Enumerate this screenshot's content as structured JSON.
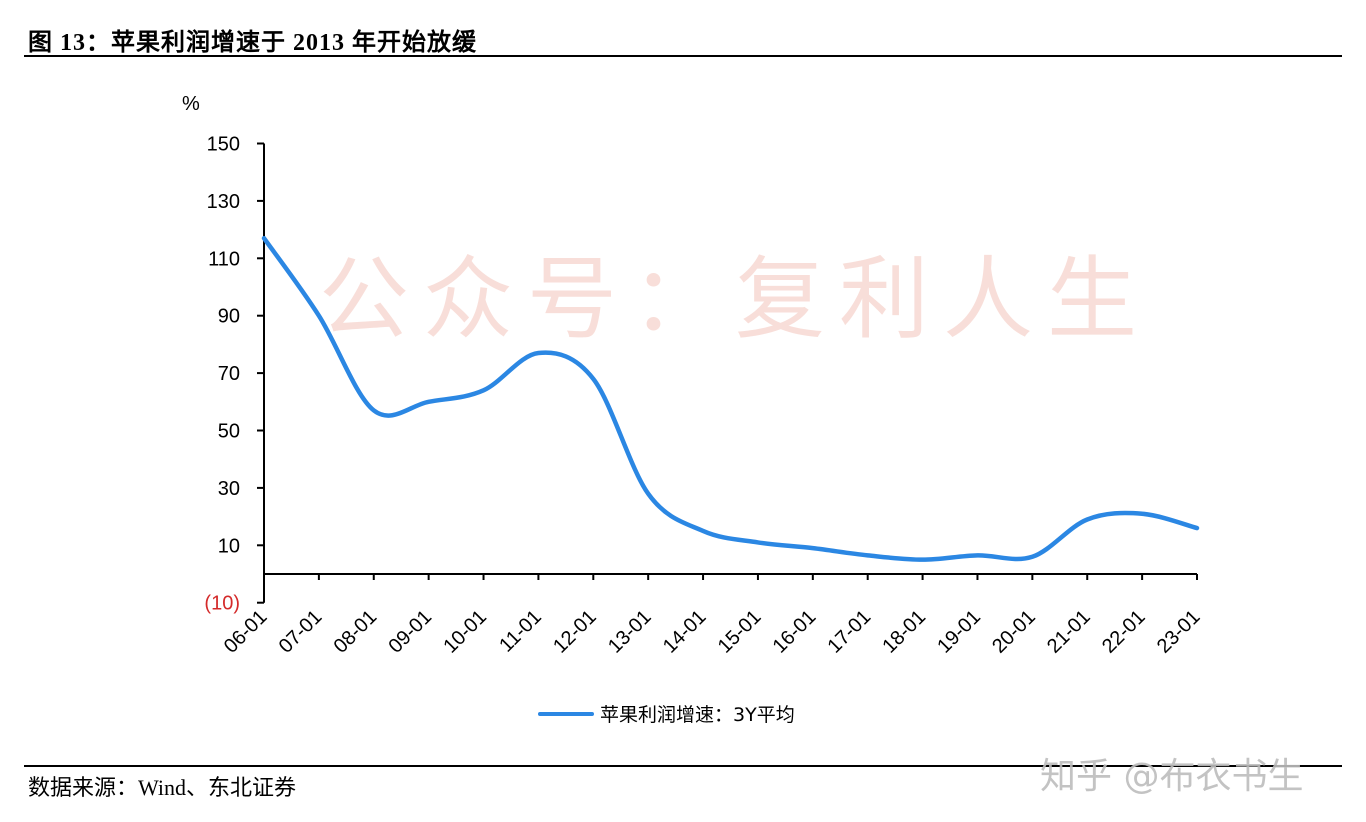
{
  "header": {
    "title": "图 13：苹果利润增速于 2013 年开始放缓"
  },
  "footer": {
    "source": "数据来源：Wind、东北证券"
  },
  "watermarks": {
    "center": "公众号：复利人生",
    "bottom_right": "知乎 @布衣书生"
  },
  "colors": {
    "line": "#2b87e3",
    "negative_tick": "#d42a2a",
    "watermark": "#f4c9c0"
  },
  "chart_data": {
    "type": "line",
    "title": "苹果利润增速于 2013 年开始放缓",
    "xlabel": "",
    "ylabel": "%",
    "ylim": [
      -10,
      150
    ],
    "yticks": [
      150,
      130,
      110,
      90,
      70,
      50,
      30,
      10,
      -10
    ],
    "ytick_labels": [
      "150",
      "130",
      "110",
      "90",
      "70",
      "50",
      "30",
      "10",
      "(10)"
    ],
    "grid": false,
    "legend_position": "bottom",
    "categories": [
      "06-01",
      "07-01",
      "08-01",
      "09-01",
      "10-01",
      "11-01",
      "12-01",
      "13-01",
      "14-01",
      "15-01",
      "16-01",
      "17-01",
      "18-01",
      "19-01",
      "20-01",
      "21-01",
      "22-01",
      "23-01"
    ],
    "series": [
      {
        "name": "苹果利润增速：3Y平均",
        "values": [
          117,
          90,
          57,
          60,
          64,
          77,
          68,
          28,
          15,
          11,
          9,
          6.5,
          5,
          6.5,
          6,
          19,
          21,
          16
        ]
      }
    ],
    "annotations": []
  },
  "legend": {
    "label": "苹果利润增速：3Y平均"
  }
}
